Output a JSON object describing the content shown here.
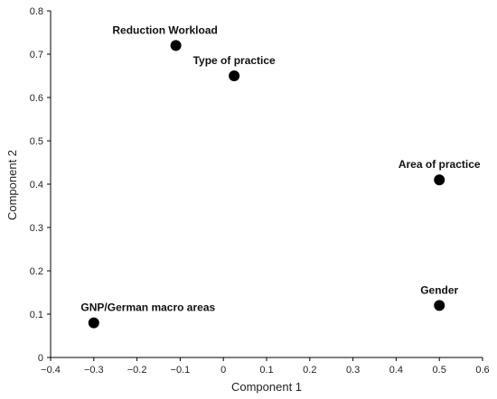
{
  "chart_data": {
    "type": "scatter",
    "xlabel": "Component 1",
    "ylabel": "Component 2",
    "xlim": [
      -0.4,
      0.6
    ],
    "ylim": [
      0,
      0.8
    ],
    "xticks": [
      -0.4,
      -0.3,
      -0.2,
      -0.1,
      0,
      0.1,
      0.2,
      0.3,
      0.4,
      0.5,
      0.6
    ],
    "xtick_labels": [
      "−0.4",
      "−0.3",
      "−0.2",
      "−0.1",
      "0",
      "0.1",
      "0.2",
      "0.3",
      "0.4",
      "0.5",
      "0.6"
    ],
    "yticks": [
      0,
      0.1,
      0.2,
      0.3,
      0.4,
      0.5,
      0.6,
      0.7,
      0.8
    ],
    "ytick_labels": [
      "0",
      "0.1",
      "0.2",
      "0.3",
      "0.4",
      "0.5",
      "0.6",
      "0.7",
      "0.8"
    ],
    "grid": false,
    "points": [
      {
        "label": "Reduction Workload",
        "x": -0.11,
        "y": 0.72,
        "label_anchor": "above-left"
      },
      {
        "label": "Type of practice",
        "x": 0.025,
        "y": 0.65,
        "label_anchor": "above"
      },
      {
        "label": "Area of practice",
        "x": 0.5,
        "y": 0.41,
        "label_anchor": "above"
      },
      {
        "label": "Gender",
        "x": 0.5,
        "y": 0.12,
        "label_anchor": "above"
      },
      {
        "label": "GNP/German macro areas",
        "x": -0.3,
        "y": 0.08,
        "label_anchor": "above-right"
      }
    ],
    "marker_color": "#000000",
    "axis_color": "#000000"
  }
}
